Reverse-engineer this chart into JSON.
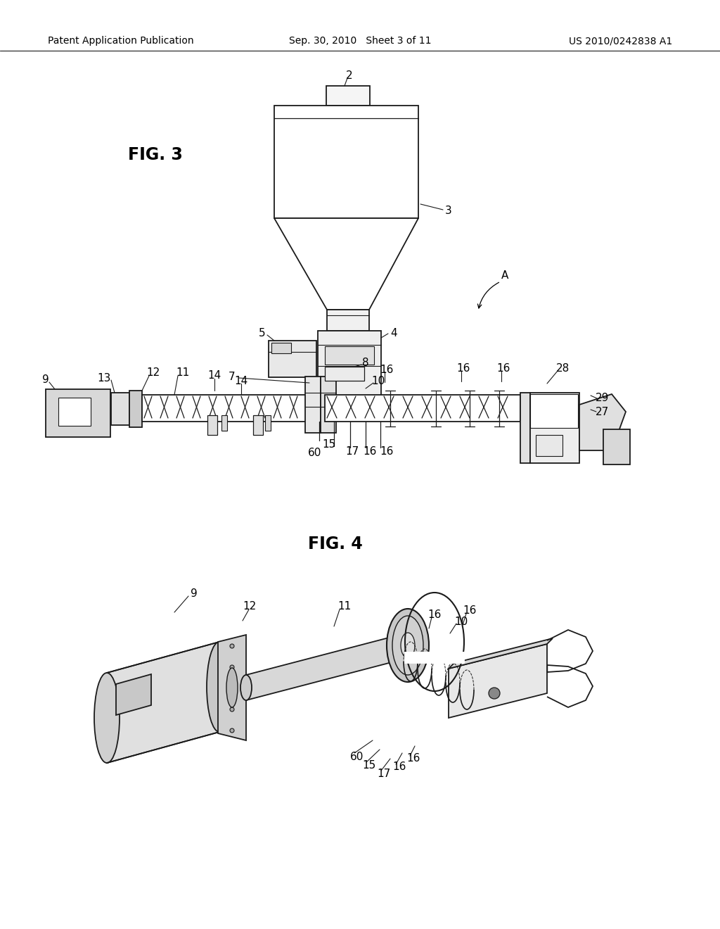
{
  "bg_color": "#ffffff",
  "lc": "#1a1a1a",
  "header_left": "Patent Application Publication",
  "header_center": "Sep. 30, 2010   Sheet 3 of 11",
  "header_right": "US 2010/0242838 A1",
  "fig3_label": "FIG. 3",
  "fig4_label": "FIG. 4"
}
